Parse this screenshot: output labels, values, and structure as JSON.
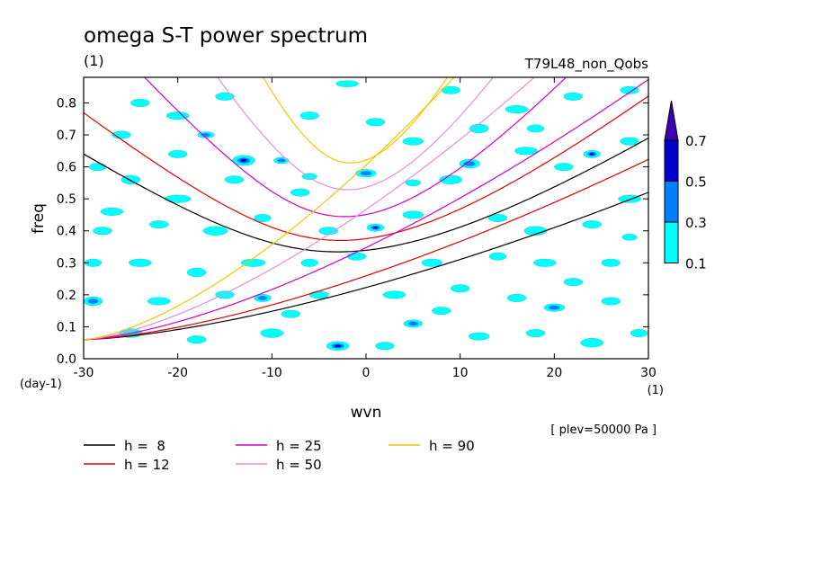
{
  "chart_data": {
    "type": "heatmap",
    "title": "omega S-T power spectrum",
    "units_label": "(1)",
    "experiment": "T79L48_non_Qobs",
    "xlabel": "wvn",
    "ylabel": "freq",
    "x_unit": "(1)",
    "y_unit": "(day-1)",
    "note": "[ plev=50000 Pa ]",
    "xlim": [
      -30,
      30
    ],
    "ylim": [
      0,
      0.88
    ],
    "x_ticks": [
      -30,
      -20,
      -10,
      0,
      10,
      20,
      30
    ],
    "x_tick_labels": [
      "-30",
      "-20",
      "-10",
      "0",
      "10",
      "20",
      "30"
    ],
    "y_ticks": [
      0,
      0.1,
      0.2,
      0.3,
      0.4,
      0.5,
      0.6,
      0.7,
      0.8
    ],
    "y_tick_labels": [
      "0.0",
      "0.1",
      "0.2",
      "0.3",
      "0.4",
      "0.5",
      "0.6",
      "0.7",
      "0.8"
    ],
    "colorbar": {
      "levels": [
        0.1,
        0.3,
        0.5,
        0.7
      ],
      "labels": [
        "0.1",
        "0.3",
        "0.5",
        "0.7"
      ],
      "colors": [
        "#00ffff",
        "#0080ff",
        "#0000c8",
        "#3c00b4"
      ]
    },
    "dispersion_curves": [
      {
        "name": "h =  8",
        "h": 8,
        "color": "#000000"
      },
      {
        "name": "h = 12",
        "h": 12,
        "color": "#e00000"
      },
      {
        "name": "h = 25",
        "h": 25,
        "color": "#d000c8"
      },
      {
        "name": "h = 50",
        "h": 50,
        "color": "#e090e0"
      },
      {
        "name": "h = 90",
        "h": 90,
        "color": "#f0c800"
      }
    ],
    "contour_blobs": [
      [
        -24,
        0.8,
        1.0,
        0.012,
        0
      ],
      [
        -17,
        0.7,
        0.9,
        0.01,
        1
      ],
      [
        -13,
        0.62,
        1.2,
        0.016,
        2
      ],
      [
        -9,
        0.62,
        0.8,
        0.01,
        1
      ],
      [
        -28.5,
        0.6,
        0.9,
        0.012,
        0
      ],
      [
        -25,
        0.56,
        1.0,
        0.014,
        0
      ],
      [
        -20,
        0.5,
        1.4,
        0.012,
        0
      ],
      [
        -14,
        0.56,
        1.0,
        0.012,
        0
      ],
      [
        -6,
        0.57,
        0.8,
        0.01,
        0
      ],
      [
        0,
        0.58,
        1.1,
        0.012,
        1
      ],
      [
        5,
        0.55,
        0.8,
        0.01,
        0
      ],
      [
        9,
        0.56,
        1.2,
        0.014,
        0
      ],
      [
        11,
        0.61,
        1.1,
        0.014,
        1
      ],
      [
        12,
        0.72,
        1.0,
        0.014,
        0
      ],
      [
        17,
        0.65,
        1.2,
        0.012,
        0
      ],
      [
        21,
        0.6,
        1.0,
        0.012,
        0
      ],
      [
        24,
        0.64,
        0.9,
        0.012,
        2
      ],
      [
        28,
        0.5,
        1.2,
        0.012,
        0
      ],
      [
        -27,
        0.46,
        1.2,
        0.012,
        0
      ],
      [
        -22,
        0.42,
        1.0,
        0.012,
        0
      ],
      [
        -16,
        0.4,
        1.3,
        0.014,
        0
      ],
      [
        -11,
        0.44,
        0.9,
        0.012,
        0
      ],
      [
        -4,
        0.4,
        1.0,
        0.012,
        0
      ],
      [
        1,
        0.41,
        0.9,
        0.012,
        2
      ],
      [
        5,
        0.45,
        1.1,
        0.012,
        0
      ],
      [
        14,
        0.44,
        1.0,
        0.012,
        0
      ],
      [
        18,
        0.4,
        1.2,
        0.014,
        0
      ],
      [
        24,
        0.42,
        1.0,
        0.012,
        0
      ],
      [
        28,
        0.38,
        0.8,
        0.01,
        0
      ],
      [
        -29,
        0.3,
        0.9,
        0.012,
        0
      ],
      [
        -24,
        0.3,
        1.2,
        0.012,
        0
      ],
      [
        -18,
        0.27,
        1.0,
        0.014,
        0
      ],
      [
        -12,
        0.3,
        1.3,
        0.012,
        0
      ],
      [
        -6,
        0.3,
        0.9,
        0.012,
        0
      ],
      [
        -1,
        0.32,
        1.0,
        0.012,
        0
      ],
      [
        7,
        0.3,
        1.1,
        0.012,
        0
      ],
      [
        14,
        0.32,
        0.9,
        0.012,
        0
      ],
      [
        19,
        0.3,
        1.2,
        0.012,
        0
      ],
      [
        26,
        0.3,
        1.0,
        0.012,
        0
      ],
      [
        -29,
        0.18,
        1.0,
        0.014,
        1
      ],
      [
        -22,
        0.18,
        1.2,
        0.012,
        0
      ],
      [
        -15,
        0.2,
        1.0,
        0.012,
        0
      ],
      [
        -11,
        0.19,
        0.9,
        0.012,
        1
      ],
      [
        -5,
        0.2,
        1.0,
        0.012,
        0
      ],
      [
        3,
        0.2,
        1.2,
        0.012,
        0
      ],
      [
        10,
        0.22,
        1.0,
        0.012,
        0
      ],
      [
        16,
        0.19,
        1.0,
        0.012,
        0
      ],
      [
        20,
        0.16,
        1.1,
        0.012,
        1
      ],
      [
        26,
        0.18,
        1.0,
        0.012,
        0
      ],
      [
        -25,
        0.08,
        1.2,
        0.014,
        0
      ],
      [
        -18,
        0.06,
        1.0,
        0.012,
        0
      ],
      [
        -10,
        0.08,
        1.2,
        0.014,
        0
      ],
      [
        -3,
        0.04,
        1.2,
        0.014,
        2
      ],
      [
        5,
        0.11,
        1.0,
        0.012,
        1
      ],
      [
        2,
        0.04,
        1.0,
        0.012,
        0
      ],
      [
        12,
        0.07,
        1.1,
        0.012,
        0
      ],
      [
        18,
        0.08,
        1.0,
        0.012,
        0
      ],
      [
        24,
        0.05,
        1.2,
        0.014,
        0
      ],
      [
        29,
        0.08,
        0.9,
        0.012,
        0
      ],
      [
        -7,
        0.52,
        1.0,
        0.012,
        0
      ],
      [
        -26,
        0.7,
        1.0,
        0.012,
        0
      ],
      [
        -20,
        0.76,
        1.2,
        0.012,
        0
      ],
      [
        -6,
        0.76,
        1.0,
        0.012,
        0
      ],
      [
        5,
        0.68,
        1.1,
        0.012,
        0
      ],
      [
        16,
        0.78,
        1.2,
        0.012,
        0
      ],
      [
        22,
        0.82,
        1.0,
        0.012,
        0
      ],
      [
        28,
        0.84,
        1.0,
        0.012,
        0
      ],
      [
        -2,
        0.86,
        1.2,
        0.01,
        0
      ],
      [
        9,
        0.84,
        1.0,
        0.012,
        0
      ],
      [
        18,
        0.72,
        0.9,
        0.012,
        0
      ],
      [
        -28,
        0.4,
        1.0,
        0.012,
        0
      ],
      [
        -8,
        0.14,
        1.0,
        0.012,
        0
      ],
      [
        8,
        0.15,
        1.0,
        0.012,
        0
      ],
      [
        22,
        0.24,
        1.0,
        0.012,
        0
      ],
      [
        -20,
        0.64,
        1.0,
        0.012,
        0
      ],
      [
        1,
        0.74,
        1.0,
        0.012,
        0
      ],
      [
        -15,
        0.82,
        1.0,
        0.012,
        0
      ],
      [
        28,
        0.68,
        1.0,
        0.012,
        0
      ]
    ]
  }
}
